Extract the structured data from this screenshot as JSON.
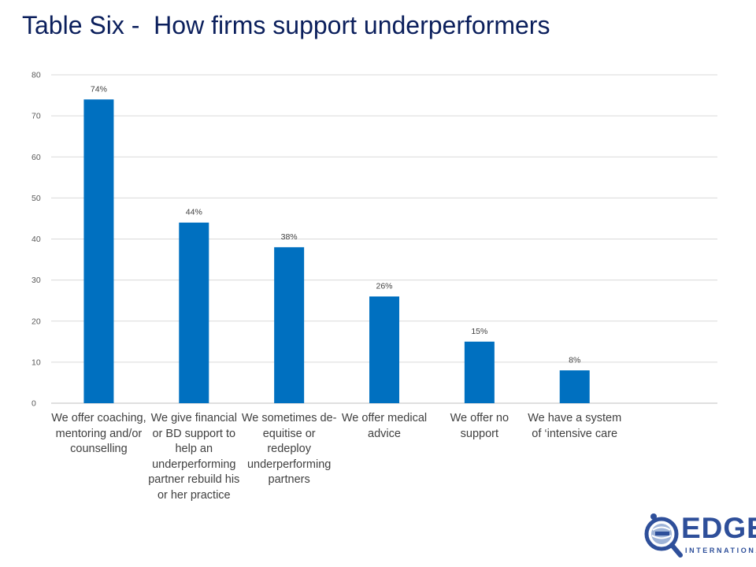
{
  "slide": {
    "title": "Table Six -  How firms support underperformers"
  },
  "chart_data": {
    "type": "bar",
    "title": "",
    "xlabel": "",
    "ylabel": "",
    "ylim": [
      0,
      80
    ],
    "yticks": [
      0,
      10,
      20,
      30,
      40,
      50,
      60,
      70,
      80
    ],
    "grid": true,
    "bar_color": "#0070c0",
    "categories": [
      "We offer coaching, mentoring and/or counselling",
      "We give financial or BD support to help an underperforming partner rebuild his or her practice",
      "We sometimes de-equitise or redeploy underperforming partners",
      "We offer medical advice",
      "We offer no support",
      "We have a system of ‘intensive care"
    ],
    "category_lines": [
      [
        "We offer coaching,",
        "mentoring and/or",
        "counselling"
      ],
      [
        "We give financial",
        "or BD support to",
        "help an",
        "underperforming",
        "partner rebuild his",
        "or her practice"
      ],
      [
        "We sometimes de-",
        "equitise or",
        "redeploy",
        "underperforming",
        "partners"
      ],
      [
        "We offer medical",
        "advice"
      ],
      [
        "We offer no",
        "support"
      ],
      [
        "We have a system",
        "of ‘intensive care"
      ]
    ],
    "values": [
      74,
      44,
      38,
      26,
      15,
      8
    ],
    "data_labels": [
      "74%",
      "44%",
      "38%",
      "26%",
      "15%",
      "8%"
    ],
    "slots": 7
  },
  "logo": {
    "text": "EDGE",
    "subtext": "INTERNATIONAL",
    "color": "#2e4f9a",
    "icon": "magnifier-globe-e-icon"
  }
}
